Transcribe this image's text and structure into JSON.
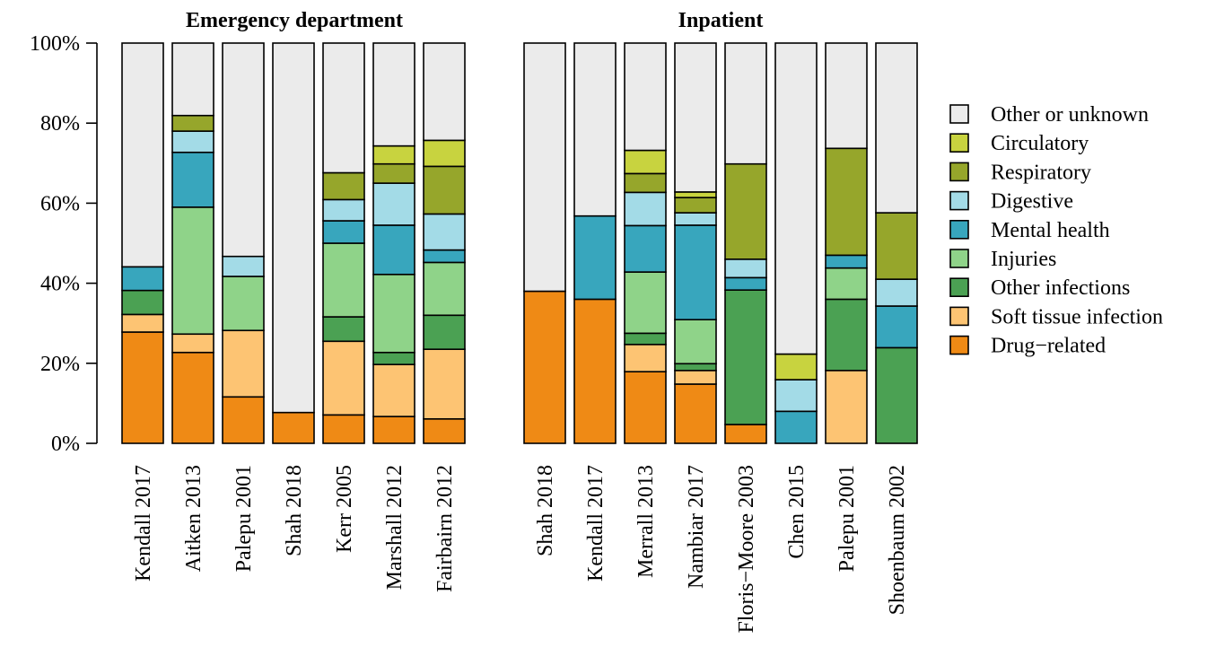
{
  "chart_data": {
    "type": "bar",
    "stacked": true,
    "normalized_percent": true,
    "ylim": [
      0,
      100
    ],
    "yticks": [
      "0%",
      "20%",
      "40%",
      "60%",
      "80%",
      "100%"
    ],
    "categories_order": [
      "Drug−related",
      "Soft tissue infection",
      "Other infections",
      "Injuries",
      "Mental health",
      "Digestive",
      "Respiratory",
      "Circulatory",
      "Other or unknown"
    ],
    "legend": {
      "placement": "right",
      "entries": [
        {
          "label": "Other or unknown",
          "color": "#ebebeb"
        },
        {
          "label": "Circulatory",
          "color": "#c8d33f"
        },
        {
          "label": "Respiratory",
          "color": "#96a62b"
        },
        {
          "label": "Digestive",
          "color": "#a3dbe7"
        },
        {
          "label": "Mental health",
          "color": "#38a6bd"
        },
        {
          "label": "Injuries",
          "color": "#8fd389"
        },
        {
          "label": "Other infections",
          "color": "#4ba153"
        },
        {
          "label": "Soft tissue infection",
          "color": "#fdc473"
        },
        {
          "label": "Drug−related",
          "color": "#ef8a15"
        }
      ]
    },
    "panels": [
      {
        "title": "Emergency department",
        "bars": [
          {
            "label": "Kendall 2017",
            "values": [
              27.8,
              4.4,
              6.0,
              0,
              5.9,
              0,
              0,
              0,
              55.9
            ]
          },
          {
            "label": "Aitken 2013",
            "values": [
              22.7,
              4.6,
              0,
              31.7,
              13.7,
              5.3,
              3.9,
              0,
              18.1
            ]
          },
          {
            "label": "Palepu 2001",
            "values": [
              11.6,
              16.6,
              0,
              13.5,
              0,
              5.0,
              0,
              0,
              53.3
            ]
          },
          {
            "label": "Shah 2018",
            "values": [
              7.7,
              0,
              0,
              0,
              0,
              0,
              0,
              0,
              92.3
            ]
          },
          {
            "label": "Kerr 2005",
            "values": [
              7.1,
              18.4,
              6.1,
              18.4,
              5.6,
              5.3,
              6.7,
              0,
              32.4
            ]
          },
          {
            "label": "Marshall 2012",
            "values": [
              6.7,
              13.0,
              3.0,
              19.5,
              12.3,
              10.5,
              4.8,
              4.5,
              25.7
            ]
          },
          {
            "label": "Fairbairn 2012",
            "values": [
              6.1,
              17.4,
              8.5,
              13.2,
              3.1,
              9.0,
              11.9,
              6.5,
              24.3
            ]
          }
        ]
      },
      {
        "title": "Inpatient",
        "bars": [
          {
            "label": "Shah 2018",
            "values": [
              38.0,
              0,
              0,
              0,
              0,
              0,
              0,
              0,
              62.0
            ]
          },
          {
            "label": "Kendall 2017",
            "values": [
              36.0,
              0,
              0,
              0,
              20.8,
              0,
              0,
              0,
              43.2
            ]
          },
          {
            "label": "Merrall 2013",
            "values": [
              17.9,
              6.8,
              2.8,
              15.3,
              11.6,
              8.3,
              4.7,
              5.8,
              26.8
            ]
          },
          {
            "label": "Nambiar 2017",
            "values": [
              14.8,
              3.4,
              1.7,
              11.0,
              23.6,
              3.1,
              3.8,
              1.4,
              37.2
            ]
          },
          {
            "label": "Floris−Moore 2003",
            "values": [
              4.7,
              0,
              33.6,
              0,
              3.1,
              4.6,
              23.8,
              0,
              30.2
            ]
          },
          {
            "label": "Chen 2015",
            "values": [
              0,
              0,
              0,
              0,
              8.0,
              7.9,
              0,
              6.4,
              77.7
            ]
          },
          {
            "label": "Palepu 2001",
            "values": [
              0,
              18.2,
              17.8,
              7.8,
              3.2,
              0,
              26.7,
              0,
              26.3
            ]
          },
          {
            "label": "Shoenbaum 2002",
            "values": [
              0,
              0,
              23.9,
              0,
              10.4,
              6.7,
              16.6,
              0,
              42.4
            ]
          }
        ]
      }
    ]
  }
}
